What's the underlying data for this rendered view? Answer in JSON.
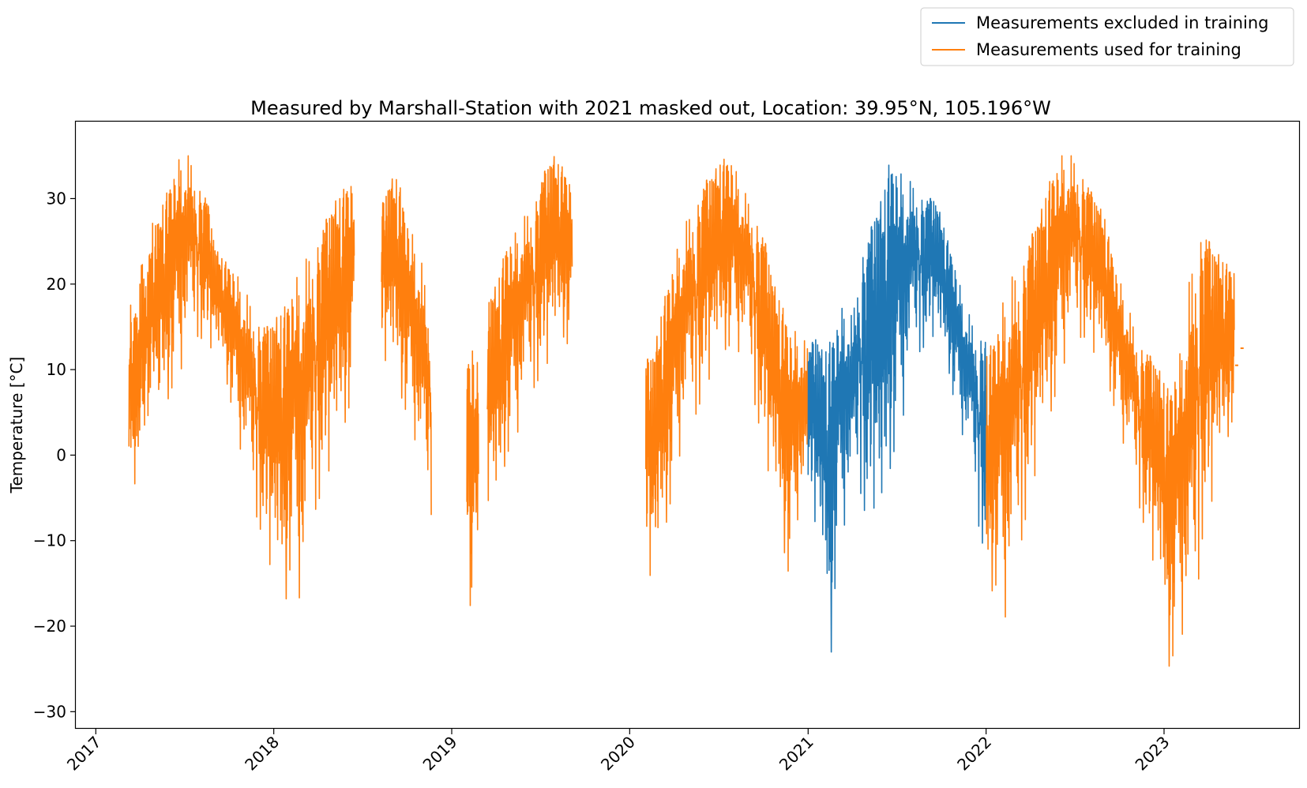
{
  "chart_data": {
    "type": "line",
    "title": "Measured by Marshall-Station with 2021 masked out, Location: 39.95°N, 105.196°W",
    "xlabel": "",
    "ylabel": "Temperature [°C]",
    "xlim": [
      "2016-11-21",
      "2023-10-05"
    ],
    "ylim": [
      -32,
      39
    ],
    "x_ticks": [
      "2017",
      "2018",
      "2019",
      "2020",
      "2021",
      "2022",
      "2023"
    ],
    "y_ticks": [
      -30,
      -20,
      -10,
      0,
      10,
      20,
      30
    ],
    "grid": false,
    "legend_position": "top-right",
    "series": [
      {
        "name": "Measurements excluded in training",
        "color": "#1f77b4",
        "segments": [
          {
            "start": "2021-01-01",
            "end": "2021-12-31",
            "lows": [
              -5,
              -8,
              -14,
              -25,
              -10,
              -8,
              -6,
              -4,
              -8,
              -6,
              -12,
              -2,
              2,
              5,
              10,
              12,
              13,
              14,
              12,
              10,
              5,
              2,
              -2,
              -8,
              -12
            ],
            "highs": [
              12,
              14,
              12,
              14,
              16,
              18,
              16,
              24,
              25,
              28,
              30,
              35,
              34,
              32,
              32,
              31,
              30,
              30,
              28,
              25,
              22,
              18,
              16,
              14,
              15
            ]
          }
        ]
      },
      {
        "name": "Measurements used for training",
        "color": "#ff7f0e",
        "segments": [
          {
            "start": "2017-03-10",
            "end": "2018-06-15",
            "lows": [
              -2,
              -4,
              0,
              3,
              5,
              8,
              10,
              12,
              14,
              13,
              12,
              10,
              5,
              0,
              -5,
              -8,
              -12,
              -15,
              -18,
              -10,
              -20,
              -8,
              -5,
              -2,
              0,
              4,
              8
            ],
            "highs": [
              18,
              20,
              25,
              28,
              30,
              33,
              35,
              35,
              32,
              30,
              24,
              23,
              22,
              20,
              18,
              16,
              15,
              16,
              18,
              20,
              22,
              24,
              26,
              28,
              30,
              32,
              33
            ]
          },
          {
            "start": "2018-08-10",
            "end": "2018-11-20",
            "lows": [
              12,
              10,
              8,
              5,
              2,
              -5,
              -7
            ],
            "highs": [
              29,
              32,
              33,
              28,
              25,
              22,
              15
            ]
          },
          {
            "start": "2019-02-01",
            "end": "2019-02-25",
            "lows": [
              -10,
              -23,
              -13
            ],
            "highs": [
              11,
              14,
              10
            ]
          },
          {
            "start": "2019-03-15",
            "end": "2019-09-05",
            "lows": [
              -5,
              -8,
              0,
              2,
              5,
              8,
              10,
              12,
              14,
              12
            ],
            "highs": [
              18,
              20,
              25,
              26,
              28,
              30,
              33,
              35,
              34,
              32
            ]
          },
          {
            "start": "2020-02-03",
            "end": "2020-12-31",
            "lows": [
              -12,
              -16,
              -10,
              -5,
              0,
              3,
              5,
              8,
              10,
              12,
              13,
              12,
              10,
              5,
              0,
              -5,
              -10,
              -15,
              -6,
              -8
            ],
            "highs": [
              11,
              12,
              18,
              22,
              25,
              28,
              30,
              32,
              33,
              35,
              35,
              32,
              30,
              28,
              25,
              20,
              18,
              15,
              14,
              13
            ]
          },
          {
            "start": "2022-01-01",
            "end": "2023-05-25",
            "lows": [
              -17,
              -15,
              -20,
              -12,
              -5,
              0,
              5,
              10,
              13,
              14,
              12,
              10,
              5,
              0,
              -5,
              -10,
              -15,
              -25,
              -20,
              -25,
              -10,
              -5,
              0,
              5
            ],
            "highs": [
              12,
              15,
              20,
              22,
              25,
              28,
              33,
              35,
              35,
              33,
              30,
              28,
              22,
              18,
              14,
              12,
              10,
              8,
              12,
              22,
              27,
              24,
              23,
              22
            ]
          }
        ],
        "isolated": [
          {
            "x": "2023-05-30",
            "y": 10.5
          },
          {
            "x": "2023-06-10",
            "y": 12.5
          }
        ]
      }
    ]
  }
}
